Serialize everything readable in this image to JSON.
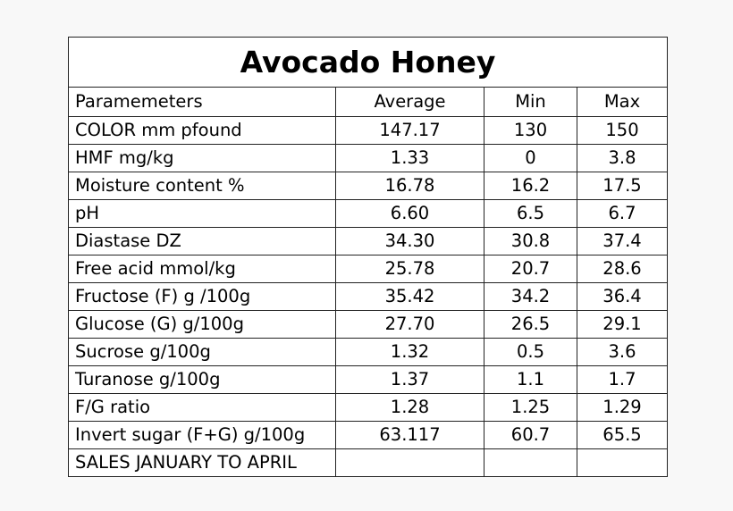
{
  "title": "Avocado Honey",
  "headers": [
    "Paramemeters",
    "Average",
    "Min",
    "Max"
  ],
  "rows": [
    [
      "COLOR mm pfound",
      "147.17",
      "130",
      "150"
    ],
    [
      "HMF mg/kg",
      "1.33",
      "0",
      "3.8"
    ],
    [
      "Moisture content %",
      "16.78",
      "16.2",
      "17.5"
    ],
    [
      "pH",
      "6.60",
      "6.5",
      "6.7"
    ],
    [
      "Diastase DZ",
      "34.30",
      "30.8",
      "37.4"
    ],
    [
      "Free acid mmol/kg",
      "25.78",
      "20.7",
      "28.6"
    ],
    [
      "Fructose (F) g /100g",
      "35.42",
      "34.2",
      "36.4"
    ],
    [
      "Glucose (G) g/100g",
      "27.70",
      "26.5",
      "29.1"
    ],
    [
      "Sucrose g/100g",
      "1.32",
      "0.5",
      "3.6"
    ],
    [
      "Turanose g/100g",
      "1.37",
      "1.1",
      "1.7"
    ],
    [
      "F/G ratio",
      "1.28",
      "1.25",
      "1.29"
    ],
    [
      "Invert sugar (F+G) g/100g",
      "63.117",
      "60.7",
      "65.5"
    ],
    [
      "SALES JANUARY TO APRIL",
      "",
      "",
      ""
    ]
  ]
}
